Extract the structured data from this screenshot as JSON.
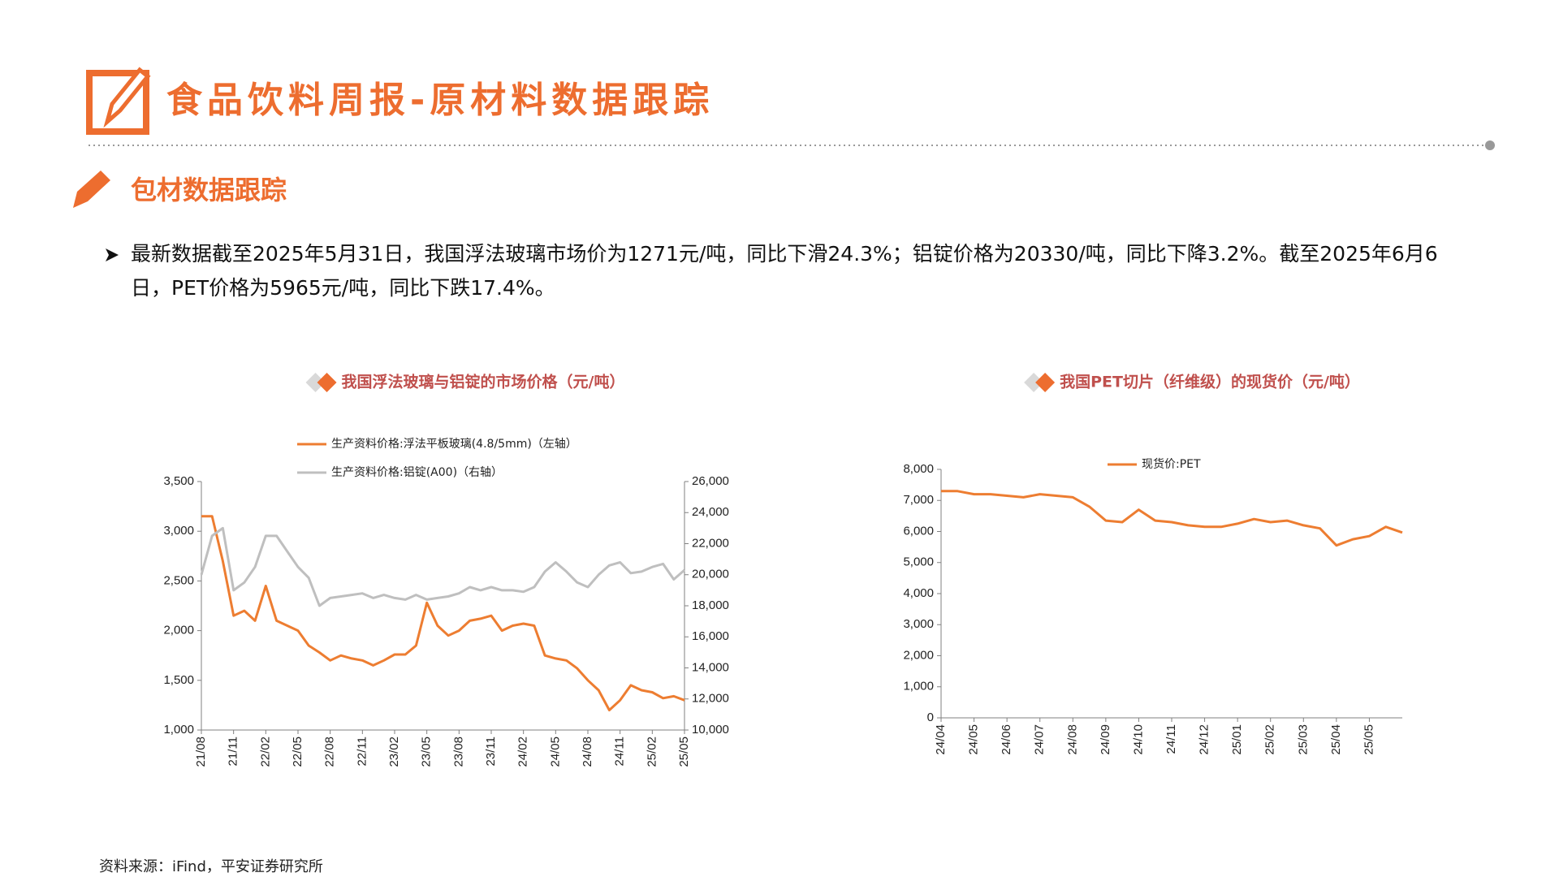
{
  "header": {
    "title": "食品饮料周报-原材料数据跟踪"
  },
  "section": {
    "title": "包材数据跟踪"
  },
  "bullet": {
    "text": "最新数据截至2025年5月31日，我国浮法玻璃市场价为1271元/吨，同比下滑24.3%；铝锭价格为20330/吨，同比下降3.2%。截至2025年6月6日，PET价格为5965元/吨，同比下跌17.4%。"
  },
  "source": "资料来源：iFind，平安证券研究所",
  "chart_data": [
    {
      "type": "line",
      "title": "我国浮法玻璃与铝锭的市场价格（元/吨）",
      "legend": "upper left",
      "categories": [
        "21/08",
        null,
        null,
        "21/11",
        null,
        null,
        "22/02",
        null,
        null,
        "22/05",
        null,
        null,
        "22/08",
        null,
        null,
        "22/11",
        null,
        null,
        "23/02",
        null,
        null,
        "23/05",
        null,
        null,
        "23/08",
        null,
        null,
        "23/11",
        null,
        null,
        "24/02",
        null,
        null,
        "24/05",
        null,
        null,
        "24/08",
        null,
        null,
        "24/11",
        null,
        null,
        "25/02",
        null,
        null,
        "25/05"
      ],
      "series": [
        {
          "name": "生产资料价格:浮法平板玻璃(4.8/5mm)（左轴）",
          "color": "#ED7D31",
          "axis": "y",
          "values": [
            3150,
            3150,
            2700,
            2150,
            2200,
            2100,
            2450,
            2100,
            2050,
            2000,
            1850,
            1780,
            1700,
            1750,
            1720,
            1700,
            1650,
            1700,
            1760,
            1760,
            1850,
            2280,
            2050,
            1950,
            2000,
            2100,
            2120,
            2150,
            2000,
            2050,
            2070,
            2050,
            1750,
            1720,
            1700,
            1620,
            1500,
            1400,
            1200,
            1300,
            1450,
            1400,
            1380,
            1320,
            1340,
            1300
          ]
        },
        {
          "name": "生产资料价格:铝锭(A00)（右轴）",
          "color": "#BFBFBF",
          "axis": "y2",
          "values": [
            20000,
            22500,
            23000,
            19000,
            19500,
            20500,
            22500,
            22500,
            21500,
            20500,
            19800,
            18000,
            18500,
            18600,
            18700,
            18800,
            18500,
            18700,
            18500,
            18400,
            18700,
            18400,
            18500,
            18600,
            18800,
            19200,
            19000,
            19200,
            19000,
            19000,
            18900,
            19200,
            20200,
            20800,
            20200,
            19500,
            19200,
            20000,
            20600,
            20800,
            20100,
            20200,
            20500,
            20700,
            19700,
            20300
          ]
        }
      ],
      "ylim": [
        1000,
        3500
      ],
      "yticks": [
        {
          "value": 1000,
          "label": "1,000"
        },
        {
          "value": 1500,
          "label": "1,500"
        },
        {
          "value": 2000,
          "label": "2,000"
        },
        {
          "value": 2500,
          "label": "2,500"
        },
        {
          "value": 3000,
          "label": "3,000"
        },
        {
          "value": 3500,
          "label": "3,500"
        }
      ],
      "y2lim": [
        10000,
        26000
      ],
      "y2ticks": [
        {
          "value": 10000,
          "label": "10,000"
        },
        {
          "value": 12000,
          "label": "12,000"
        },
        {
          "value": 14000,
          "label": "14,000"
        },
        {
          "value": 16000,
          "label": "16,000"
        },
        {
          "value": 18000,
          "label": "18,000"
        },
        {
          "value": 20000,
          "label": "20,000"
        },
        {
          "value": 22000,
          "label": "22,000"
        },
        {
          "value": 24000,
          "label": "24,000"
        },
        {
          "value": 26000,
          "label": "26,000"
        }
      ]
    },
    {
      "type": "line",
      "title": "我国PET切片（纤维级）的现货价（元/吨）",
      "legend": "upper center",
      "categories": [
        "24/04",
        null,
        "24/05",
        null,
        "24/06",
        null,
        "24/07",
        null,
        "24/08",
        null,
        "24/09",
        null,
        "24/10",
        null,
        "24/11",
        null,
        "24/12",
        null,
        "25/01",
        null,
        "25/02",
        null,
        "25/03",
        null,
        "25/04",
        null,
        "25/05",
        null,
        null
      ],
      "series": [
        {
          "name": "现货价:PET",
          "color": "#ED7D31",
          "axis": "y",
          "values": [
            7300,
            7300,
            7200,
            7200,
            7150,
            7100,
            7200,
            7150,
            7100,
            6800,
            6350,
            6300,
            6700,
            6350,
            6300,
            6200,
            6150,
            6150,
            6250,
            6400,
            6300,
            6350,
            6200,
            6100,
            5550,
            5750,
            5850,
            6150,
            5965
          ]
        }
      ],
      "ylim": [
        0,
        8000
      ],
      "yticks": [
        0,
        {
          "value": 1000,
          "label": "1,000"
        },
        {
          "value": 2000,
          "label": "2,000"
        },
        {
          "value": 3000,
          "label": "3,000"
        },
        {
          "value": 4000,
          "label": "4,000"
        },
        {
          "value": 5000,
          "label": "5,000"
        },
        {
          "value": 6000,
          "label": "6,000"
        },
        {
          "value": 7000,
          "label": "7,000"
        },
        {
          "value": 8000,
          "label": "8,000"
        }
      ]
    }
  ]
}
